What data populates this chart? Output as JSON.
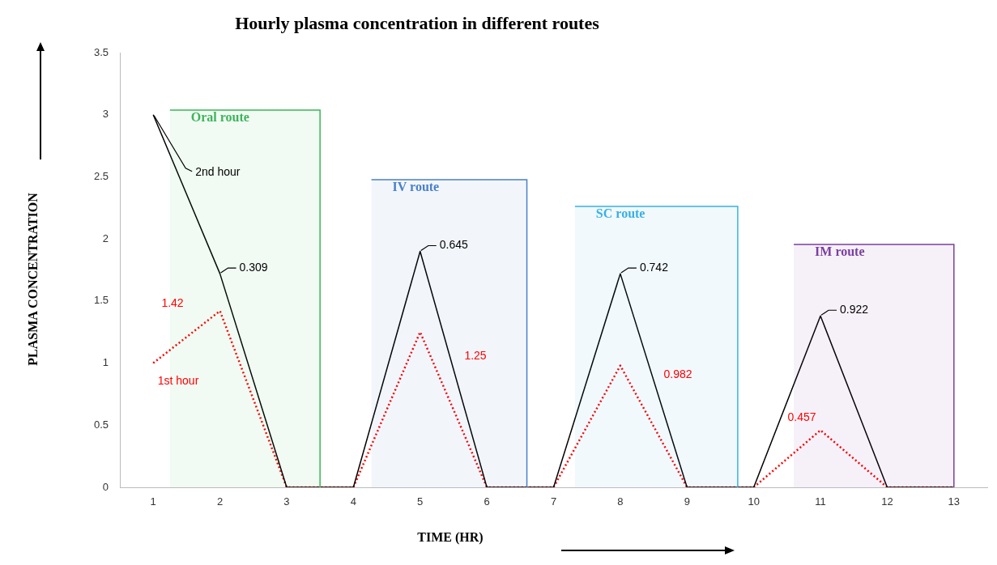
{
  "chart_data": {
    "type": "line",
    "title": "Hourly plasma concentration in different routes",
    "xlabel": "TIME (HR)",
    "ylabel": "PLASMA CONCENTRATION",
    "x": [
      1,
      2,
      3,
      4,
      5,
      6,
      7,
      8,
      9,
      10,
      11,
      12,
      13
    ],
    "series": [
      {
        "color": "#000000",
        "values": [
          3,
          1.72,
          0,
          0,
          1.9,
          0,
          0,
          1.72,
          0,
          0,
          1.38,
          0,
          0
        ]
      },
      {
        "color": "#ff0000",
        "line_style": "dotted",
        "values": [
          1,
          1.42,
          0,
          0,
          1.25,
          0,
          0,
          0.98,
          0,
          0,
          0.46,
          0,
          0
        ]
      }
    ],
    "xlim": [
      0.5,
      13.5
    ],
    "xticks": [
      1,
      2,
      3,
      4,
      5,
      6,
      7,
      8,
      9,
      10,
      11,
      12,
      13
    ],
    "ylim": [
      0,
      3.5
    ],
    "yticks": [
      0,
      0.5,
      1,
      1.5,
      2,
      2.5,
      3,
      3.5
    ],
    "grid": false,
    "legend": false,
    "marker": "none",
    "line_style": "solid",
    "bands": [
      {
        "axis": "x",
        "from": 1.25,
        "to": 3.5,
        "label": "Oral route",
        "color": "#3cb55a"
      },
      {
        "axis": "x",
        "from": 4.27,
        "to": 6.6,
        "label": "IV route",
        "color": "#4a80c8"
      },
      {
        "axis": "x",
        "from": 7.32,
        "to": 9.76,
        "label": "SC route",
        "color": "#38b0e6"
      },
      {
        "axis": "x",
        "from": 10.6,
        "to": 13,
        "label": "IM route",
        "color": "#7a3fa0"
      }
    ],
    "annotations": [
      "1.42",
      "1st hour",
      "1.25",
      "0.982",
      "0.457",
      {
        "text": "2nd hour",
        "x": 1,
        "y": 3
      },
      {
        "text": "0.309",
        "x": 2,
        "y": 1.72
      },
      {
        "text": "0.645",
        "x": 5,
        "y": 1.9
      },
      {
        "text": "0.742",
        "x": 8,
        "y": 1.72
      },
      {
        "text": "0.922",
        "x": 11,
        "y": 1.38
      }
    ]
  }
}
